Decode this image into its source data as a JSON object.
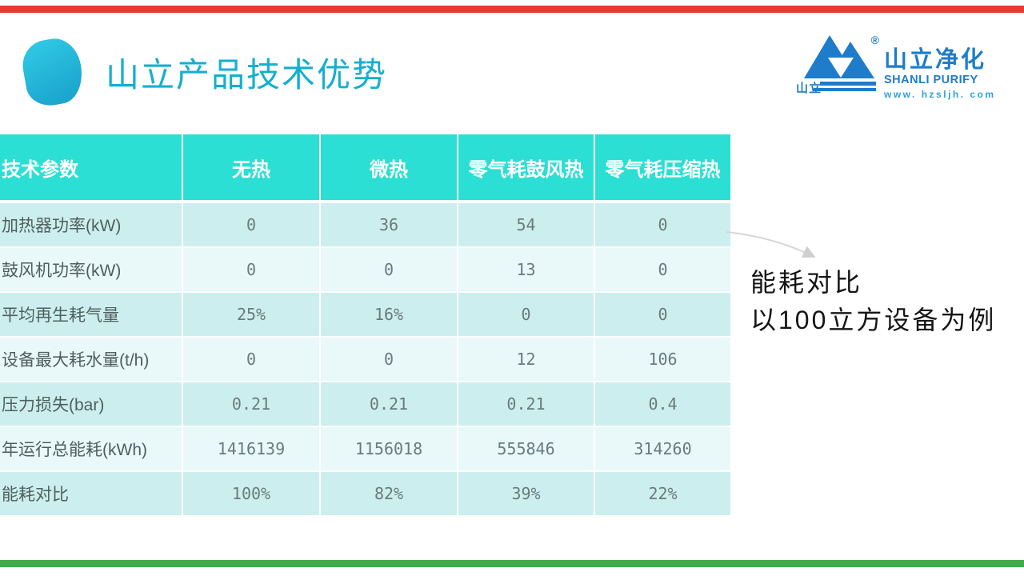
{
  "slide": {
    "title": "山立产品技术优势"
  },
  "colors": {
    "top_bar": "#E43C30",
    "bottom_bar": "#3FAC4D",
    "title": "#14AFD0",
    "blob_from": "#2FC7E4",
    "blob_to": "#1BA6CE",
    "header_bg": "#2BDFD4",
    "row_bg_odd": "#CDEEEE",
    "row_bg_even": "#E9F8F8",
    "logo_blue": "#1E7CCB",
    "logo_url_blue": "#2FA0DC"
  },
  "logo": {
    "cn_name": "山立净化",
    "en_name": "SHANLI PURIFY",
    "website": "www. hzsljh. com",
    "mark_text": "山立",
    "registered": "®"
  },
  "table": {
    "header": [
      "技术参数",
      "无热",
      "微热",
      "零气耗鼓风热",
      "零气耗压缩热"
    ],
    "rows": [
      {
        "label": "加热器功率(kW)",
        "values": [
          "0",
          "36",
          "54",
          "0"
        ]
      },
      {
        "label": "鼓风机功率(kW)",
        "values": [
          "0",
          "0",
          "13",
          "0"
        ]
      },
      {
        "label": "平均再生耗气量",
        "values": [
          "25%",
          "16%",
          "0",
          "0"
        ]
      },
      {
        "label": "设备最大耗水量(t/h)",
        "values": [
          "0",
          "0",
          "12",
          "106"
        ]
      },
      {
        "label": "压力损失(bar)",
        "values": [
          "0.21",
          "0.21",
          "0.21",
          "0.4"
        ]
      },
      {
        "label": "年运行总能耗(kWh)",
        "values": [
          "1416139",
          "1156018",
          "555846",
          "314260"
        ]
      },
      {
        "label": "能耗对比",
        "values": [
          "100%",
          "82%",
          "39%",
          "22%"
        ]
      }
    ]
  },
  "annotation": {
    "line1": "能耗对比",
    "line2": "以100立方设备为例"
  }
}
